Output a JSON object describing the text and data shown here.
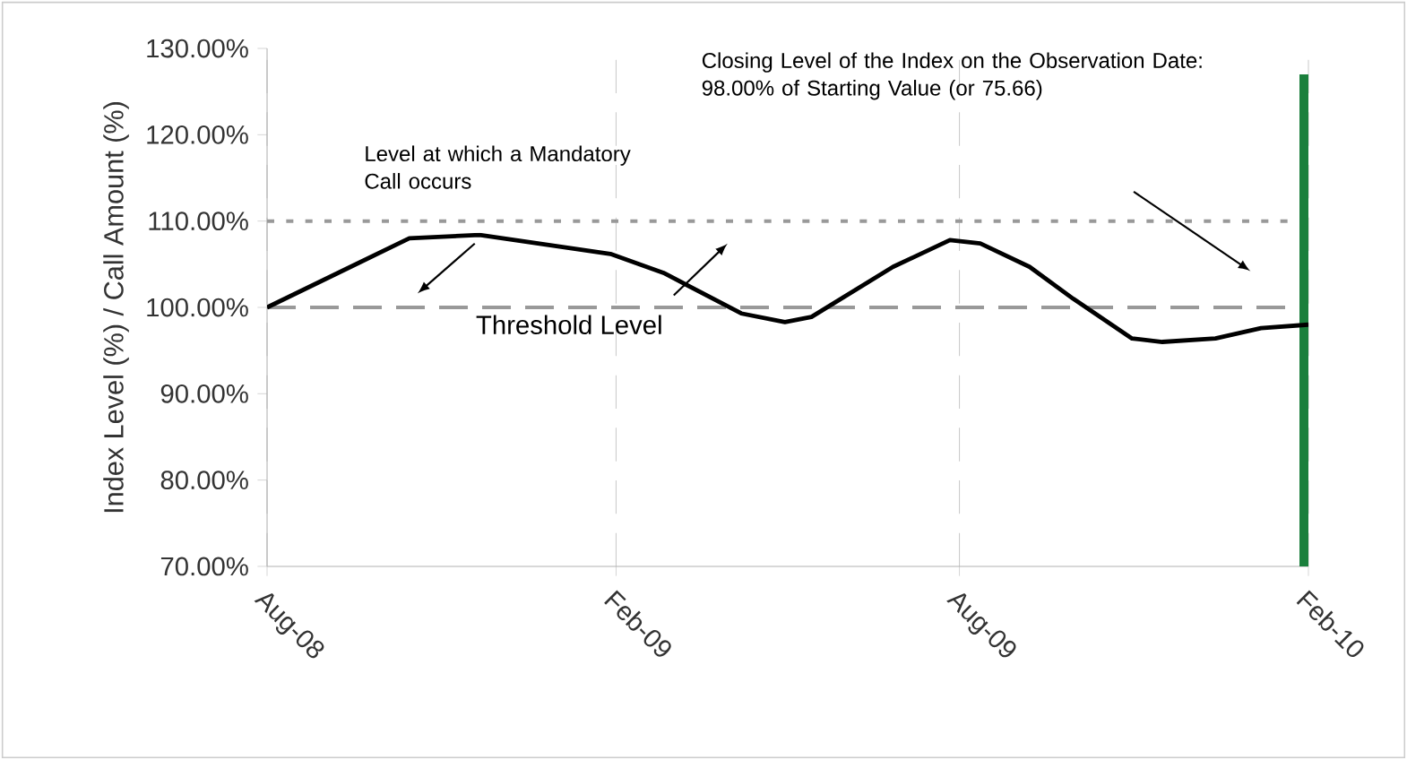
{
  "chart_data": {
    "type": "line",
    "ylabel": "Index Level (%) / Call Amount (%)",
    "xlim": [
      "2008-08-01",
      "2010-02-01"
    ],
    "ylim": [
      70,
      130
    ],
    "xticks": [
      {
        "value": "2008-08-01",
        "label": "Aug-08"
      },
      {
        "value": "2009-02-01",
        "label": "Feb-09"
      },
      {
        "value": "2009-08-01",
        "label": "Aug-09"
      },
      {
        "value": "2010-02-01",
        "label": "Feb-10"
      }
    ],
    "yticks": [
      {
        "value": 70,
        "label": "70.00%"
      },
      {
        "value": 80,
        "label": "80.00%"
      },
      {
        "value": 90,
        "label": "90.00%"
      },
      {
        "value": 100,
        "label": "100.00%"
      },
      {
        "value": 110,
        "label": "110.00%"
      },
      {
        "value": 120,
        "label": "120.00%"
      },
      {
        "value": 130,
        "label": "130.00%"
      }
    ],
    "grid": "x",
    "marker": "none",
    "line_style": "solid",
    "series": [
      {
        "color": "#000000",
        "x": [
          "2008-08-01",
          "2008-09-14",
          "2008-10-15",
          "2008-11-21",
          "2009-01-29",
          "2009-02-26",
          "2009-04-08",
          "2009-05-01",
          "2009-05-15",
          "2009-06-27",
          "2009-07-27",
          "2009-08-12",
          "2009-09-07",
          "2009-09-30",
          "2009-10-31",
          "2009-11-16",
          "2009-12-14",
          "2010-01-07",
          "2010-02-01"
        ],
        "values": [
          100,
          104.7,
          108,
          108.4,
          106.2,
          104,
          99.3,
          98.3,
          98.9,
          104.7,
          107.8,
          107.4,
          104.7,
          101,
          96.4,
          96,
          96.4,
          97.6,
          98
        ]
      },
      {
        "type": "bar",
        "color": "#1a7f3c",
        "x": [
          "2010-02-01"
        ],
        "values": [
          127
        ]
      }
    ],
    "ref_lines": [
      {
        "axis": "y",
        "value": 110,
        "label": "Level at which a Mandatory Call occurs",
        "color": "#999999",
        "line_style": "dotted"
      },
      {
        "axis": "y",
        "value": 100,
        "label": "Threshold Level",
        "color": "#999999",
        "line_style": "dashed"
      }
    ],
    "annotations": [
      "Closing Level of the Index on the Observation Date: 98.00% of Starting Value (or 75.66)"
    ]
  }
}
